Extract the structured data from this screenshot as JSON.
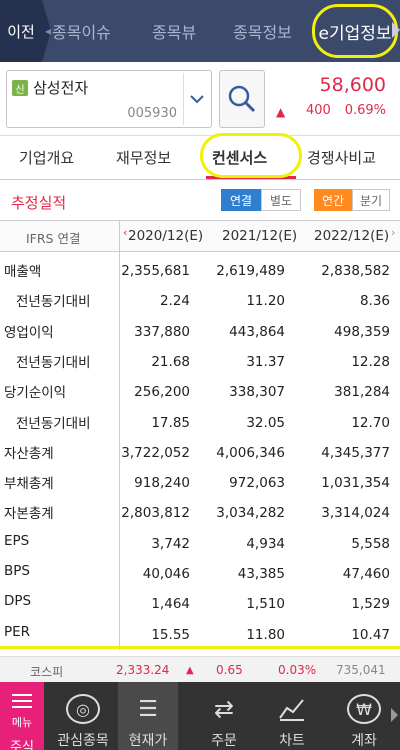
{
  "topnav": {
    "back": "이전",
    "tabs": [
      "종목이슈",
      "종목뷰",
      "종목정보",
      "e기업정보"
    ]
  },
  "stock": {
    "badge": "신",
    "name": "삼성전자",
    "code": "005930",
    "price": "58,600",
    "change": "400",
    "change_pct": "0.69%"
  },
  "subtabs": [
    "기업개요",
    "재무정보",
    "컨센서스",
    "경쟁사비교"
  ],
  "filter": {
    "title": "추정실적",
    "seg1": [
      "연결",
      "별도"
    ],
    "seg2": [
      "연간",
      "분기"
    ]
  },
  "table": {
    "header_label": "IFRS 연결",
    "columns": [
      "2020/12(E)",
      "2021/12(E)",
      "2022/12(E)"
    ],
    "rows": [
      {
        "label": "매출액",
        "sub": false,
        "values": [
          "2,355,681",
          "2,619,489",
          "2,838,582"
        ]
      },
      {
        "label": "전년동기대비",
        "sub": true,
        "values": [
          "2.24",
          "11.20",
          "8.36"
        ]
      },
      {
        "label": "영업이익",
        "sub": false,
        "values": [
          "337,880",
          "443,864",
          "498,359"
        ]
      },
      {
        "label": "전년동기대비",
        "sub": true,
        "values": [
          "21.68",
          "31.37",
          "12.28"
        ]
      },
      {
        "label": "당기순이익",
        "sub": false,
        "values": [
          "256,200",
          "338,307",
          "381,284"
        ]
      },
      {
        "label": "전년동기대비",
        "sub": true,
        "values": [
          "17.85",
          "32.05",
          "12.70"
        ]
      },
      {
        "label": "자산총계",
        "sub": false,
        "values": [
          "3,722,052",
          "4,006,346",
          "4,345,377"
        ]
      },
      {
        "label": "부채총계",
        "sub": false,
        "values": [
          "918,240",
          "972,063",
          "1,031,354"
        ]
      },
      {
        "label": "자본총계",
        "sub": false,
        "values": [
          "2,803,812",
          "3,034,282",
          "3,314,024"
        ]
      },
      {
        "label": "EPS",
        "sub": false,
        "values": [
          "3,742",
          "4,934",
          "5,558"
        ]
      },
      {
        "label": "BPS",
        "sub": false,
        "values": [
          "40,046",
          "43,385",
          "47,460"
        ]
      },
      {
        "label": "DPS",
        "sub": false,
        "values": [
          "1,464",
          "1,510",
          "1,529"
        ]
      },
      {
        "label": "PER",
        "sub": false,
        "values": [
          "15.55",
          "11.80",
          "10.47"
        ]
      }
    ]
  },
  "index": {
    "name": "코스피",
    "value": "2,333.24",
    "change": "0.65",
    "pct": "0.03%",
    "volume": "735,041"
  },
  "bottom": {
    "menu": "메뉴",
    "menu_under": "주식",
    "items": [
      "관심종목",
      "현재가",
      "주문",
      "차트",
      "계좌"
    ]
  },
  "colors": {
    "accent_red": "#e0294a",
    "nav_bg": "#3b4a6b",
    "highlight": "#f0f00a",
    "menu_pink": "#e7207a"
  }
}
